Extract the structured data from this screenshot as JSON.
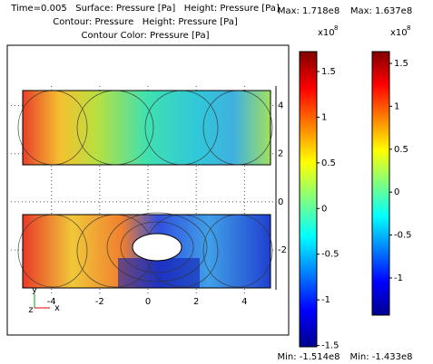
{
  "header": {
    "lines": [
      "Time=0.005   Surface: Pressure [Pa]   Height: Pressure [Pa]",
      "Contour: Pressure   Height: Pressure [Pa]",
      "Contour Color: Pressure [Pa]"
    ]
  },
  "plot": {
    "xlim": [
      -5.83,
      5.83
    ],
    "ylim": [
      -5.53,
      6.5
    ],
    "xticks": [
      -4,
      -2,
      0,
      2,
      4
    ],
    "yticks": [
      4,
      2,
      0,
      -2
    ],
    "axes_triad": [
      "y",
      "z",
      "x"
    ]
  },
  "colorbars": [
    {
      "max_label": "Max: 1.718e8",
      "min_label": "Min: -1.514e8",
      "scale_label": "x10",
      "scale_power": "8",
      "clim": [
        -1.514,
        1.718
      ],
      "ticks": [
        1.5,
        1,
        0.5,
        0,
        -0.5,
        -1,
        -1.5
      ]
    },
    {
      "max_label": "Max: 1.637e8",
      "min_label": "Min: -1.433e8",
      "scale_label": "x10",
      "scale_power": "8",
      "clim": [
        -1.433,
        1.637
      ],
      "ticks": [
        1.5,
        1,
        0.5,
        0,
        -0.5,
        -1
      ]
    }
  ]
}
